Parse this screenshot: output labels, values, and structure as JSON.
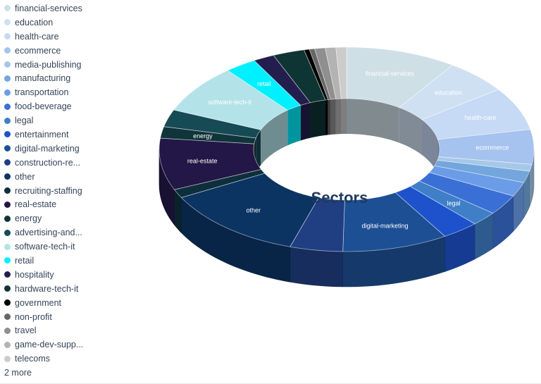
{
  "chart_data": {
    "type": "pie",
    "title": "Sectors",
    "categories": [
      "financial-services",
      "education",
      "health-care",
      "ecommerce",
      "media-publishing",
      "manufacturing",
      "transportation",
      "food-beverage",
      "legal",
      "entertainment",
      "digital-marketing",
      "construction-re...",
      "other",
      "recruiting-staffing",
      "real-estate",
      "energy",
      "advertising-and...",
      "software-tech-it",
      "retail",
      "hospitality",
      "hardware-tech-it",
      "government",
      "non-profit",
      "travel",
      "game-dev-supp...",
      "telecoms"
    ],
    "values": [
      10.5,
      6.0,
      7.5,
      6.0,
      1.2,
      2.0,
      2.5,
      3.5,
      2.5,
      3.5,
      10.0,
      5.0,
      13.5,
      1.5,
      9.0,
      2.0,
      3.0,
      8.5,
      3.0,
      2.0,
      3.0,
      0.5,
      0.5,
      1.0,
      1.0,
      1.0
    ],
    "colors": [
      "#cfdfe6",
      "#cfe0f2",
      "#c6d9f5",
      "#a6c2ee",
      "#a6c8e8",
      "#73a6dc",
      "#6b9ce8",
      "#3a70d6",
      "#3f7fc8",
      "#1e52cc",
      "#1d4f94",
      "#203f82",
      "#0b3463",
      "#0d2f3c",
      "#221746",
      "#0f3439",
      "#164a55",
      "#b3e3e8",
      "#00f0ff",
      "#221e4e",
      "#0f3434",
      "#000000",
      "#666666",
      "#8f8f8f",
      "#b3b3b3",
      "#cccccc"
    ],
    "data_labels": {
      "financial-services": "financial-services",
      "education": "education",
      "health-care": "health-care",
      "ecommerce": "ecommerce",
      "legal": "legal",
      "digital-marketing": "digital-marketing",
      "other": "other",
      "real-estate": "real-estate",
      "energy": "energy",
      "software-tech-it": "software-tech-it",
      "retail": "retail"
    },
    "legend_position": "left",
    "donut": true
  },
  "legend": {
    "items": [
      {
        "label": "financial-services",
        "color": "#cfdfe6"
      },
      {
        "label": "education",
        "color": "#cfe0f2"
      },
      {
        "label": "health-care",
        "color": "#c6d9f5"
      },
      {
        "label": "ecommerce",
        "color": "#a6c2ee"
      },
      {
        "label": "media-publishing",
        "color": "#a6c8e8"
      },
      {
        "label": "manufacturing",
        "color": "#73a6dc"
      },
      {
        "label": "transportation",
        "color": "#6b9ce8"
      },
      {
        "label": "food-beverage",
        "color": "#3a70d6"
      },
      {
        "label": "legal",
        "color": "#3f7fc8"
      },
      {
        "label": "entertainment",
        "color": "#1e52cc"
      },
      {
        "label": "digital-marketing",
        "color": "#1d4f94"
      },
      {
        "label": "construction-re...",
        "color": "#203f82"
      },
      {
        "label": "other",
        "color": "#0b3463"
      },
      {
        "label": "recruiting-staffing",
        "color": "#0d2f3c"
      },
      {
        "label": "real-estate",
        "color": "#221746"
      },
      {
        "label": "energy",
        "color": "#0f3439"
      },
      {
        "label": "advertising-and...",
        "color": "#164a55"
      },
      {
        "label": "software-tech-it",
        "color": "#b3e3e8"
      },
      {
        "label": "retail",
        "color": "#00f0ff"
      },
      {
        "label": "hospitality",
        "color": "#221e4e"
      },
      {
        "label": "hardware-tech-it",
        "color": "#0f3434"
      },
      {
        "label": "government",
        "color": "#000000"
      },
      {
        "label": "non-profit",
        "color": "#666666"
      },
      {
        "label": "travel",
        "color": "#8f8f8f"
      },
      {
        "label": "game-dev-supp...",
        "color": "#b3b3b3"
      },
      {
        "label": "telecoms",
        "color": "#cccccc"
      }
    ],
    "more_label": "2 more"
  }
}
